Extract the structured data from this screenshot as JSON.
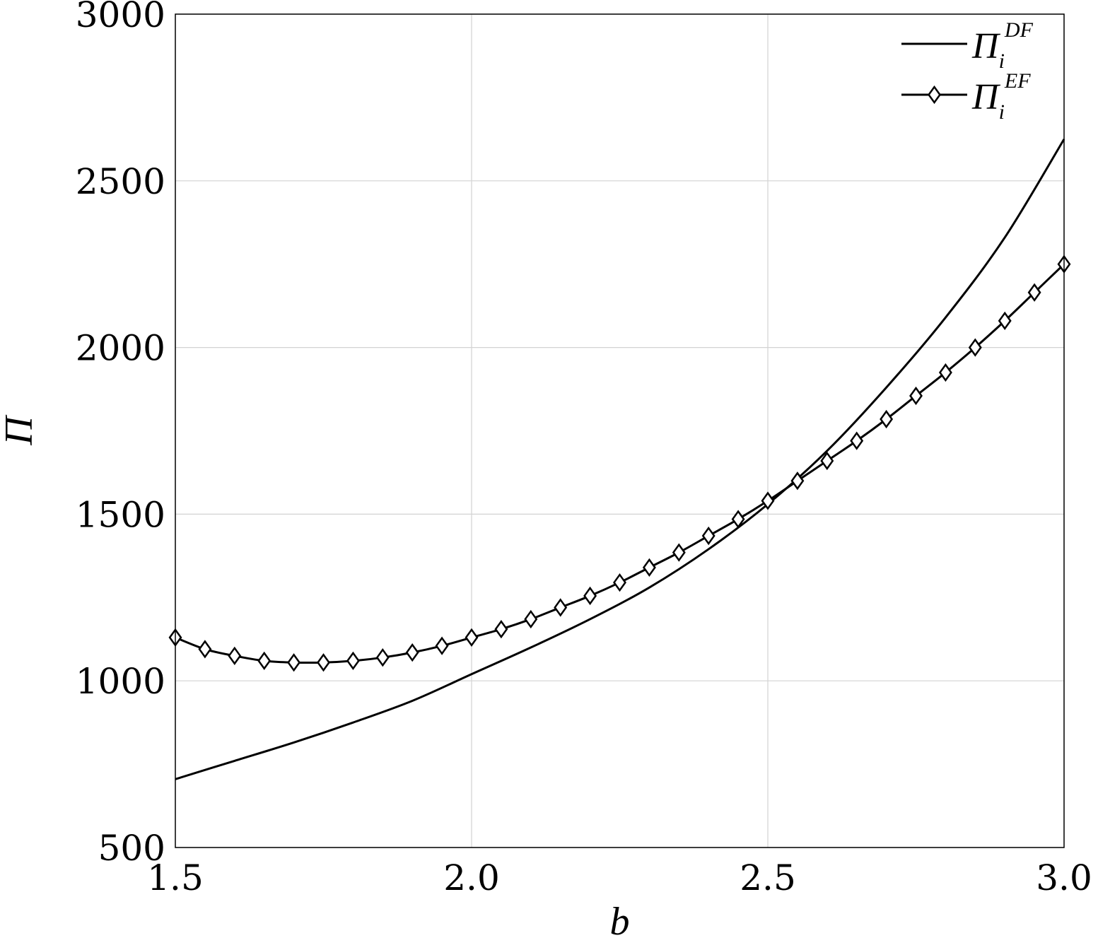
{
  "chart_data": {
    "type": "line",
    "xlabel": "b",
    "ylabel": "Π",
    "xlim": [
      1.5,
      3.0
    ],
    "ylim": [
      500,
      3000
    ],
    "x_ticks": [
      "1.5",
      "2.0",
      "2.5",
      "3.0"
    ],
    "y_ticks": [
      "500",
      "1000",
      "1500",
      "2000",
      "2500",
      "3000"
    ],
    "grid": true,
    "legend_position": "top-right",
    "series": [
      {
        "name_base": "Π",
        "name_sub": "i",
        "name_sup": "DF",
        "marker": "none",
        "x": [
          1.5,
          1.6,
          1.7,
          1.8,
          1.9,
          2.0,
          2.1,
          2.2,
          2.3,
          2.4,
          2.5,
          2.6,
          2.7,
          2.8,
          2.9,
          3.0
        ],
        "y": [
          705,
          760,
          815,
          875,
          940,
          1020,
          1100,
          1185,
          1280,
          1395,
          1530,
          1690,
          1880,
          2090,
          2330,
          2625
        ]
      },
      {
        "name_base": "Π",
        "name_sub": "i",
        "name_sup": "EF",
        "marker": "diamond",
        "x": [
          1.5,
          1.55,
          1.6,
          1.65,
          1.7,
          1.75,
          1.8,
          1.85,
          1.9,
          1.95,
          2.0,
          2.05,
          2.1,
          2.15,
          2.2,
          2.25,
          2.3,
          2.35,
          2.4,
          2.45,
          2.5,
          2.55,
          2.6,
          2.65,
          2.7,
          2.75,
          2.8,
          2.85,
          2.9,
          2.95,
          3.0
        ],
        "y": [
          1130,
          1095,
          1075,
          1060,
          1055,
          1055,
          1060,
          1070,
          1085,
          1105,
          1130,
          1155,
          1185,
          1220,
          1255,
          1295,
          1340,
          1385,
          1435,
          1485,
          1540,
          1600,
          1660,
          1720,
          1785,
          1855,
          1925,
          2000,
          2080,
          2165,
          2250
        ]
      }
    ]
  }
}
